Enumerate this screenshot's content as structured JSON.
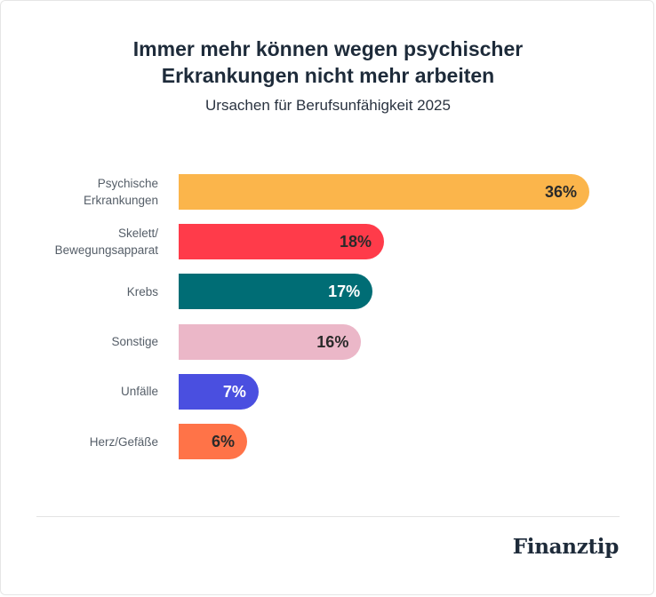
{
  "chart_data": {
    "type": "bar",
    "orientation": "horizontal",
    "title": "Immer mehr können wegen psychischer Erkrankungen nicht mehr arbeiten",
    "title_lines": [
      "Immer mehr können wegen psychischer",
      "Erkrankungen nicht mehr arbeiten"
    ],
    "subtitle": "Ursachen für Berufsunfähigkeit 2025",
    "categories": [
      "Psychische Erkrankungen",
      "Skelett/ Bewegungsapparat",
      "Krebs",
      "Sonstige",
      "Unfälle",
      "Herz/Gefäße"
    ],
    "category_lines": [
      [
        "Psychische",
        "Erkrankungen"
      ],
      [
        "Skelett/",
        "Bewegungsapparat"
      ],
      [
        "Krebs"
      ],
      [
        "Sonstige"
      ],
      [
        "Unfälle"
      ],
      [
        "Herz/Gefäße"
      ]
    ],
    "values": [
      36,
      18,
      17,
      16,
      7,
      6
    ],
    "value_labels": [
      "36%",
      "18%",
      "17%",
      "16%",
      "7%",
      "6%"
    ],
    "unit": "%",
    "colors": [
      "#fbb54b",
      "#ff3b4a",
      "#006d75",
      "#ebb7c8",
      "#4a4fe0",
      "#ff7348"
    ],
    "label_colors": [
      "#2a2a2a",
      "#2a2a2a",
      "#ffffff",
      "#2a2a2a",
      "#ffffff",
      "#2a2a2a"
    ],
    "grid": false,
    "legend": "none"
  },
  "brand": {
    "logo": "Finanztip"
  }
}
